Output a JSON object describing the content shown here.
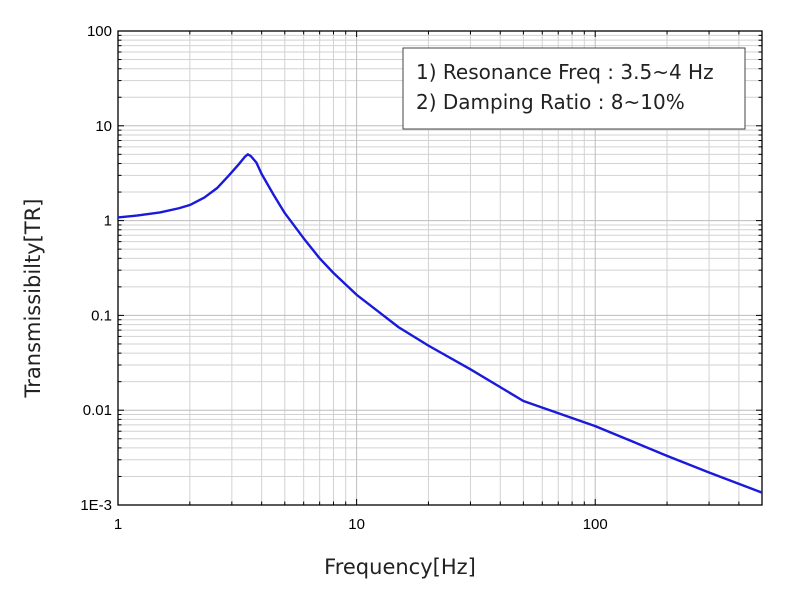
{
  "chart_data": {
    "type": "line",
    "title": "",
    "xlabel": "Frequency[Hz]",
    "ylabel": "Transmissibilty[TR]",
    "xscale": "log",
    "yscale": "log",
    "xlim": [
      1,
      500
    ],
    "ylim": [
      0.001,
      100
    ],
    "x_ticks": [
      {
        "value": 1,
        "label": "1"
      },
      {
        "value": 10,
        "label": "10"
      },
      {
        "value": 100,
        "label": "100"
      }
    ],
    "y_ticks": [
      {
        "value": 100,
        "label": "100"
      },
      {
        "value": 10,
        "label": "10"
      },
      {
        "value": 1,
        "label": "1"
      },
      {
        "value": 0.1,
        "label": "0.1"
      },
      {
        "value": 0.01,
        "label": "0.01"
      },
      {
        "value": 0.001,
        "label": "1E-3"
      }
    ],
    "grid": true,
    "minor_grid": true,
    "legend_position": "top-right",
    "annotation_lines": [
      "1) Resonance Freq : 3.5~4 Hz",
      "2) Damping Ratio : 8~10%"
    ],
    "series": [
      {
        "color": "#1a1adb",
        "x": [
          1,
          1.2,
          1.5,
          1.8,
          2,
          2.3,
          2.6,
          2.9,
          3.2,
          3.4,
          3.5,
          3.6,
          3.8,
          4,
          4.5,
          5,
          6,
          7,
          8,
          10,
          15,
          20,
          30,
          50,
          100,
          200,
          300,
          500
        ],
        "y": [
          1.08,
          1.13,
          1.22,
          1.35,
          1.46,
          1.75,
          2.2,
          2.95,
          3.9,
          4.7,
          5.0,
          4.8,
          4.1,
          3.1,
          1.85,
          1.2,
          0.65,
          0.4,
          0.28,
          0.165,
          0.075,
          0.048,
          0.027,
          0.0125,
          0.0068,
          0.0033,
          0.0022,
          0.00135
        ]
      }
    ]
  }
}
